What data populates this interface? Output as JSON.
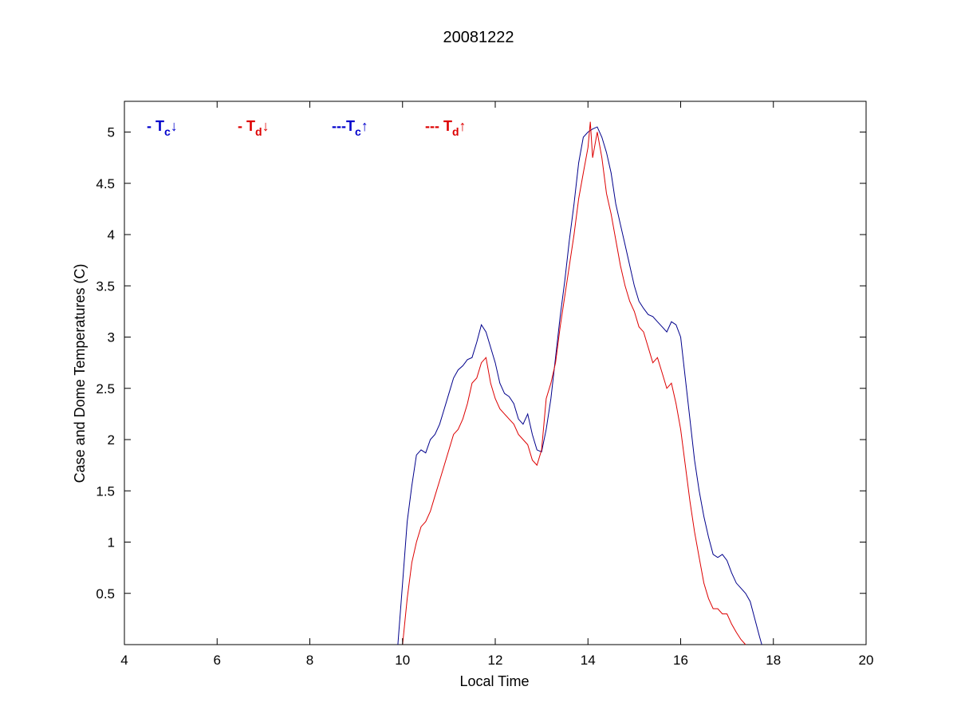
{
  "chart_data": {
    "type": "line",
    "title": "20081222",
    "xlabel": "Local Time",
    "ylabel": "Case and Dome Temperatures (C)",
    "xlim": [
      4,
      20
    ],
    "ylim": [
      0,
      5.3
    ],
    "xticks": [
      4,
      6,
      8,
      10,
      12,
      14,
      16,
      18,
      20
    ],
    "yticks": [
      0.5,
      1,
      1.5,
      2,
      2.5,
      3,
      3.5,
      4,
      4.5,
      5
    ],
    "grid": false,
    "legend": {
      "placement": "top-left",
      "entries": [
        {
          "prefix": "- T",
          "sub": "c",
          "arrow": "↓",
          "color": "#0000cc"
        },
        {
          "prefix": "- T",
          "sub": "d",
          "arrow": "↓",
          "color": "#dd0000"
        },
        {
          "prefix": "---T",
          "sub": "c",
          "arrow": "↑",
          "color": "#0000cc"
        },
        {
          "prefix": "--- T",
          "sub": "d",
          "arrow": "↑",
          "color": "#dd0000"
        }
      ]
    },
    "series": [
      {
        "color": "#00008b",
        "x": [
          9.9,
          10.0,
          10.1,
          10.2,
          10.3,
          10.4,
          10.5,
          10.6,
          10.7,
          10.8,
          10.9,
          11.0,
          11.1,
          11.2,
          11.3,
          11.4,
          11.5,
          11.6,
          11.7,
          11.8,
          11.9,
          12.0,
          12.1,
          12.2,
          12.3,
          12.4,
          12.5,
          12.6,
          12.7,
          12.8,
          12.9,
          13.0,
          13.1,
          13.2,
          13.3,
          13.4,
          13.5,
          13.6,
          13.7,
          13.8,
          13.9,
          14.0,
          14.1,
          14.2,
          14.3,
          14.4,
          14.5,
          14.6,
          14.7,
          14.8,
          14.9,
          15.0,
          15.1,
          15.2,
          15.3,
          15.4,
          15.5,
          15.6,
          15.7,
          15.8,
          15.9,
          16.0,
          16.1,
          16.2,
          16.3,
          16.4,
          16.5,
          16.6,
          16.7,
          16.8,
          16.9,
          17.0,
          17.1,
          17.2,
          17.3,
          17.4,
          17.5,
          17.6,
          17.7,
          17.75
        ],
        "y": [
          0.0,
          0.6,
          1.2,
          1.55,
          1.85,
          1.9,
          1.87,
          2.0,
          2.05,
          2.15,
          2.3,
          2.45,
          2.6,
          2.68,
          2.72,
          2.78,
          2.8,
          2.95,
          3.12,
          3.05,
          2.9,
          2.75,
          2.55,
          2.45,
          2.42,
          2.35,
          2.2,
          2.15,
          2.25,
          2.05,
          1.9,
          1.88,
          2.1,
          2.4,
          2.8,
          3.2,
          3.55,
          3.95,
          4.3,
          4.7,
          4.95,
          5.0,
          5.03,
          5.05,
          4.95,
          4.8,
          4.6,
          4.3,
          4.1,
          3.9,
          3.7,
          3.5,
          3.35,
          3.28,
          3.22,
          3.2,
          3.15,
          3.1,
          3.05,
          3.15,
          3.12,
          3.0,
          2.6,
          2.2,
          1.8,
          1.5,
          1.25,
          1.05,
          0.88,
          0.85,
          0.88,
          0.82,
          0.7,
          0.6,
          0.55,
          0.5,
          0.42,
          0.25,
          0.08,
          0.0
        ]
      },
      {
        "color": "#dd0000",
        "x": [
          10.0,
          10.1,
          10.2,
          10.3,
          10.4,
          10.5,
          10.6,
          10.7,
          10.8,
          10.9,
          11.0,
          11.1,
          11.2,
          11.3,
          11.4,
          11.5,
          11.6,
          11.7,
          11.8,
          11.9,
          12.0,
          12.1,
          12.2,
          12.3,
          12.4,
          12.5,
          12.6,
          12.7,
          12.8,
          12.9,
          13.0,
          13.1,
          13.2,
          13.3,
          13.4,
          13.5,
          13.6,
          13.7,
          13.8,
          13.9,
          14.0,
          14.05,
          14.1,
          14.2,
          14.3,
          14.4,
          14.5,
          14.6,
          14.7,
          14.8,
          14.9,
          15.0,
          15.1,
          15.2,
          15.3,
          15.4,
          15.5,
          15.6,
          15.7,
          15.8,
          15.9,
          16.0,
          16.1,
          16.2,
          16.3,
          16.4,
          16.5,
          16.6,
          16.7,
          16.8,
          16.9,
          17.0,
          17.1,
          17.2,
          17.3,
          17.4
        ],
        "y": [
          0.0,
          0.45,
          0.8,
          1.0,
          1.15,
          1.2,
          1.3,
          1.45,
          1.6,
          1.75,
          1.9,
          2.05,
          2.1,
          2.2,
          2.35,
          2.55,
          2.6,
          2.75,
          2.8,
          2.55,
          2.4,
          2.3,
          2.25,
          2.2,
          2.15,
          2.05,
          2.0,
          1.95,
          1.8,
          1.75,
          1.9,
          2.4,
          2.55,
          2.75,
          3.1,
          3.4,
          3.7,
          4.0,
          4.35,
          4.6,
          4.85,
          5.1,
          4.75,
          5.0,
          4.75,
          4.4,
          4.2,
          3.95,
          3.7,
          3.5,
          3.35,
          3.25,
          3.1,
          3.05,
          2.9,
          2.75,
          2.8,
          2.65,
          2.5,
          2.55,
          2.35,
          2.1,
          1.75,
          1.4,
          1.1,
          0.85,
          0.6,
          0.45,
          0.35,
          0.35,
          0.3,
          0.3,
          0.2,
          0.12,
          0.05,
          0.0
        ]
      }
    ]
  }
}
